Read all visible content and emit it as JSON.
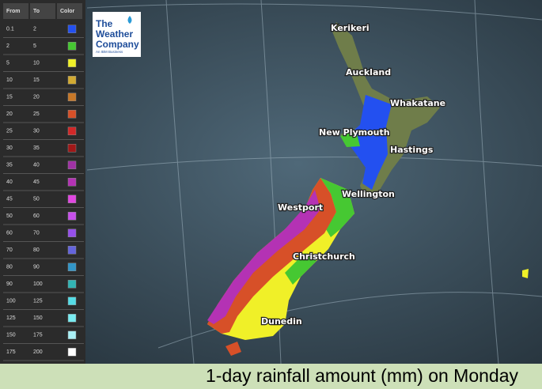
{
  "legend": {
    "headers": [
      "From",
      "To",
      "Color"
    ],
    "rows": [
      {
        "from": 0.1,
        "to": 2,
        "color": "#2350f0"
      },
      {
        "from": 2,
        "to": 5,
        "color": "#46c832"
      },
      {
        "from": 5,
        "to": 10,
        "color": "#f0f028"
      },
      {
        "from": 10,
        "to": 15,
        "color": "#d2aa32"
      },
      {
        "from": 15,
        "to": 20,
        "color": "#c87828"
      },
      {
        "from": 20,
        "to": 25,
        "color": "#d75028"
      },
      {
        "from": 25,
        "to": 30,
        "color": "#d22828"
      },
      {
        "from": 30,
        "to": 35,
        "color": "#a01818"
      },
      {
        "from": 35,
        "to": 40,
        "color": "#a032a5"
      },
      {
        "from": 40,
        "to": 45,
        "color": "#b432b4"
      },
      {
        "from": 45,
        "to": 50,
        "color": "#e146e1"
      },
      {
        "from": 50,
        "to": 60,
        "color": "#c850eb"
      },
      {
        "from": 60,
        "to": 70,
        "color": "#9650eb"
      },
      {
        "from": 70,
        "to": 80,
        "color": "#6464dc"
      },
      {
        "from": 80,
        "to": 90,
        "color": "#3296c8"
      },
      {
        "from": 90,
        "to": 100,
        "color": "#32b4b4"
      },
      {
        "from": 100,
        "to": 125,
        "color": "#55dce6"
      },
      {
        "from": 125,
        "to": 150,
        "color": "#78ebf0"
      },
      {
        "from": 150,
        "to": 175,
        "color": "#aaf0f5"
      },
      {
        "from": 175,
        "to": 200,
        "color": "#ffffff"
      }
    ]
  },
  "logo": {
    "lines": [
      "The",
      "Weather",
      "Company"
    ],
    "tagline": "An IBM Business"
  },
  "places": [
    "Kerikeri",
    "Auckland",
    "Whakatane",
    "New Plymouth",
    "Hastings",
    "Wellington",
    "Westport",
    "Christchurch",
    "Dunedin"
  ],
  "caption": "1-day rainfall amount (mm) on Monday"
}
